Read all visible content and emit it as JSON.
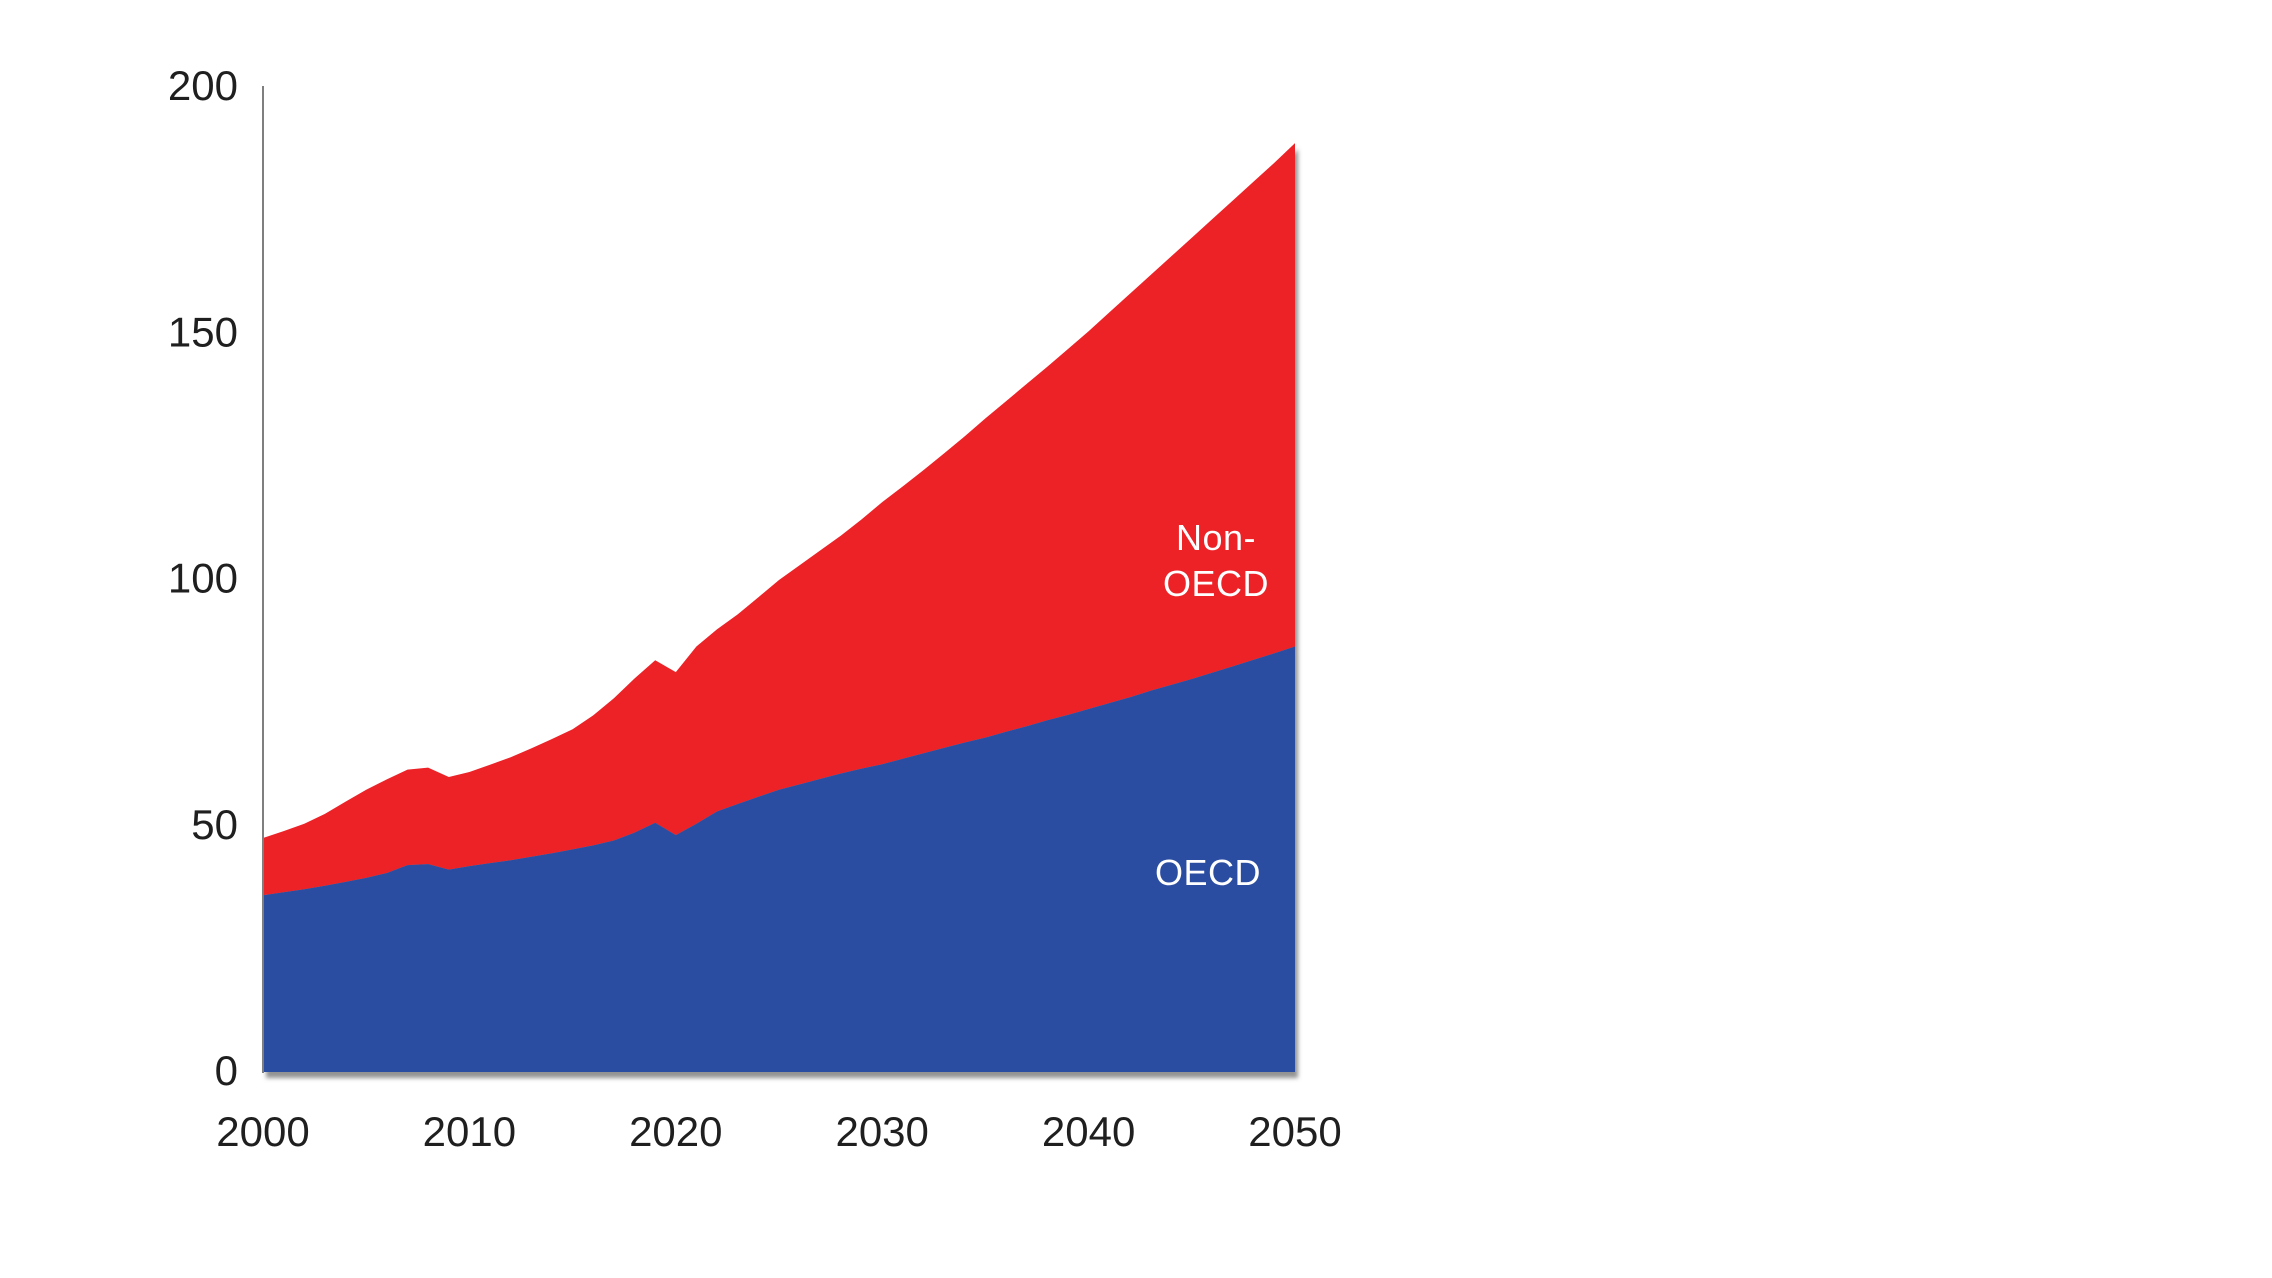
{
  "page": {
    "background": "#FFFFFF"
  },
  "chart_data": {
    "type": "area",
    "stacked": true,
    "title": "",
    "xlabel": "",
    "ylabel": "",
    "xlim": [
      2000,
      2050
    ],
    "ylim": [
      0,
      200
    ],
    "grid": false,
    "legend_position": "inline-labels-on-areas",
    "background": "#FFFFFF",
    "axis_color": "#7F7F7F",
    "tick_label_color": "#1F1F1F",
    "x": [
      2000,
      2001,
      2002,
      2003,
      2004,
      2005,
      2006,
      2007,
      2008,
      2009,
      2010,
      2011,
      2012,
      2013,
      2014,
      2015,
      2016,
      2017,
      2018,
      2019,
      2020,
      2021,
      2022,
      2023,
      2024,
      2025,
      2026,
      2027,
      2028,
      2029,
      2030,
      2031,
      2032,
      2033,
      2034,
      2035,
      2036,
      2037,
      2038,
      2039,
      2040,
      2041,
      2042,
      2043,
      2044,
      2045,
      2046,
      2047,
      2048,
      2049,
      2050
    ],
    "series": [
      {
        "name": "OECD",
        "color": "#2A4DA2",
        "values": [
          35.5,
          36.1,
          36.7,
          37.4,
          38.2,
          39.0,
          40.0,
          41.6,
          41.8,
          40.7,
          41.4,
          42.0,
          42.6,
          43.3,
          44.0,
          44.8,
          45.6,
          46.6,
          48.2,
          50.2,
          47.7,
          50.0,
          52.5,
          54.0,
          55.5,
          56.9,
          58.0,
          59.1,
          60.2,
          61.2,
          62.1,
          63.2,
          64.3,
          65.4,
          66.5,
          67.5,
          68.7,
          69.8,
          71.0,
          72.1,
          73.3,
          74.5,
          75.7,
          77.0,
          78.2,
          79.4,
          80.7,
          82.0,
          83.3,
          84.6,
          86.0
        ]
      },
      {
        "name": "Non-OECD",
        "color": "#EC2127",
        "values": [
          11.6,
          12.4,
          13.3,
          14.6,
          16.3,
          17.9,
          19.0,
          19.4,
          19.6,
          18.8,
          19.1,
          20.0,
          20.9,
          22.0,
          23.2,
          24.4,
          26.4,
          28.9,
          31.3,
          33.0,
          33.1,
          36.0,
          37.0,
          38.5,
          40.5,
          42.6,
          44.5,
          46.4,
          48.3,
          50.6,
          53.2,
          55.3,
          57.5,
          59.8,
          62.2,
          64.8,
          67.1,
          69.5,
          71.8,
          74.3,
          76.7,
          79.3,
          81.9,
          84.4,
          87.0,
          89.6,
          92.1,
          94.6,
          97.1,
          99.6,
          102.2
        ]
      }
    ],
    "xticks": [
      "2000",
      "2010",
      "2020",
      "2030",
      "2040",
      "2050"
    ],
    "yticks": [
      "0",
      "50",
      "100",
      "150",
      "200"
    ],
    "inline_labels": {
      "non_oecd_line1": "Non-",
      "non_oecd_line2": "OECD",
      "oecd": "OECD"
    }
  }
}
